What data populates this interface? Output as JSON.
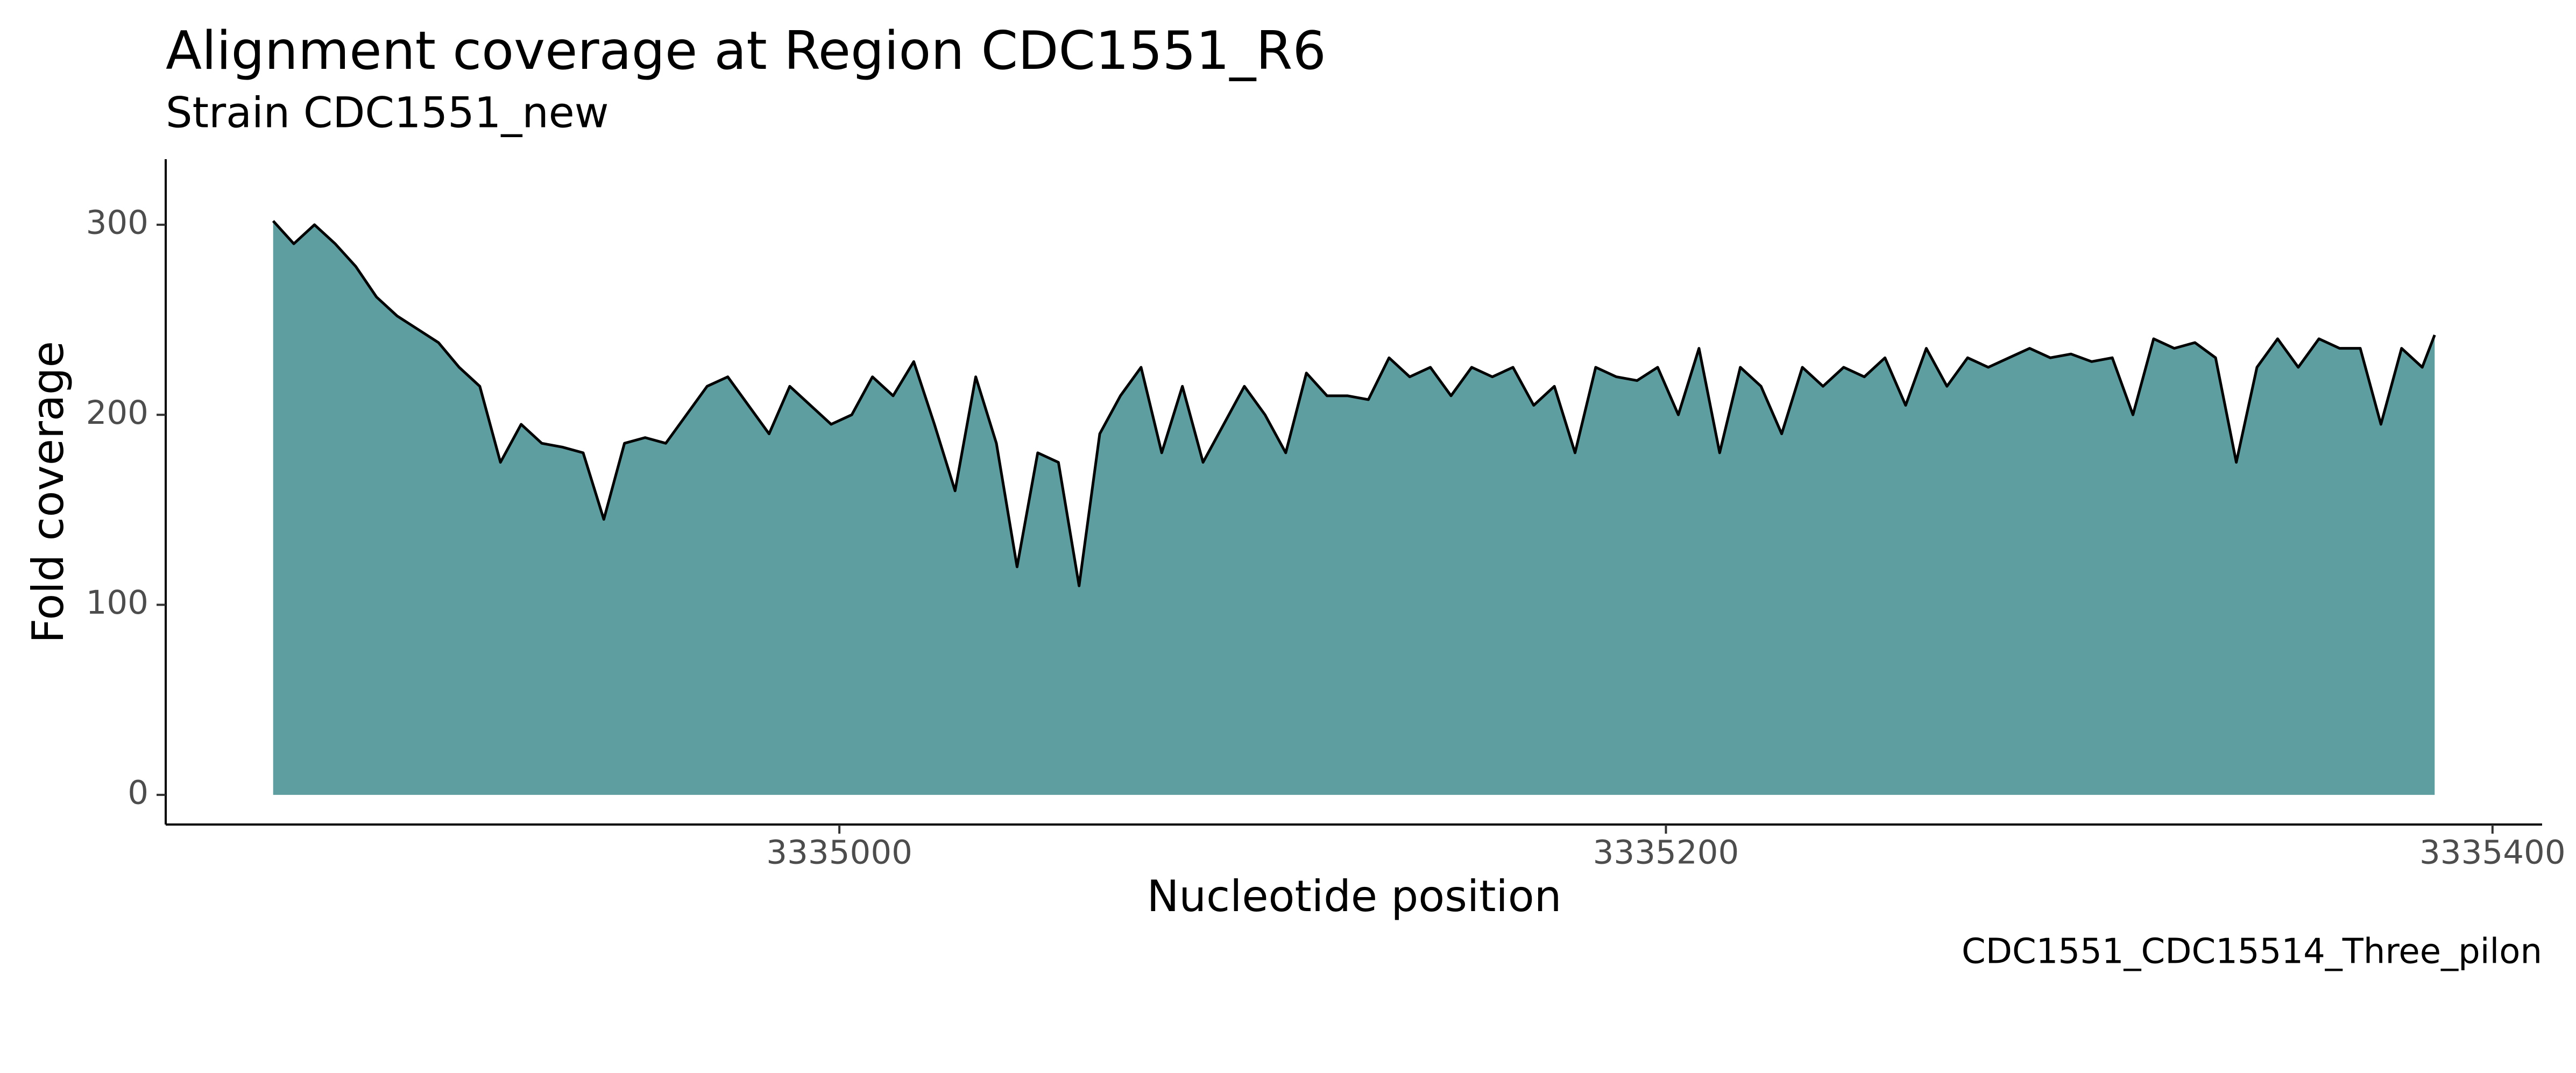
{
  "chart_data": {
    "type": "area",
    "title": "Alignment coverage at Region CDC1551_R6",
    "subtitle": "Strain CDC1551_new",
    "x_label": "Nucleotide position",
    "y_label": "Fold coverage",
    "caption": "CDC1551_CDC15514_Three_pilon",
    "fill_color": "#5f9ea0",
    "line_color": "#000000",
    "x": [
      3334863,
      3334868,
      3334873,
      3334878,
      3334883,
      3334888,
      3334893,
      3334898,
      3334903,
      3334908,
      3334913,
      3334918,
      3334923,
      3334928,
      3334933,
      3334938,
      3334943,
      3334948,
      3334953,
      3334958,
      3334963,
      3334968,
      3334973,
      3334978,
      3334983,
      3334988,
      3334993,
      3334998,
      3335003,
      3335008,
      3335013,
      3335018,
      3335023,
      3335028,
      3335033,
      3335038,
      3335043,
      3335048,
      3335053,
      3335058,
      3335063,
      3335068,
      3335073,
      3335078,
      3335083,
      3335088,
      3335093,
      3335098,
      3335103,
      3335108,
      3335113,
      3335118,
      3335123,
      3335128,
      3335133,
      3335138,
      3335143,
      3335148,
      3335153,
      3335158,
      3335163,
      3335168,
      3335173,
      3335178,
      3335183,
      3335188,
      3335193,
      3335198,
      3335203,
      3335208,
      3335213,
      3335218,
      3335223,
      3335228,
      3335233,
      3335238,
      3335243,
      3335248,
      3335253,
      3335258,
      3335263,
      3335268,
      3335273,
      3335278,
      3335283,
      3335288,
      3335293,
      3335298,
      3335303,
      3335308,
      3335313,
      3335318,
      3335323,
      3335328,
      3335333,
      3335338,
      3335343,
      3335348,
      3335353,
      3335358,
      3335363,
      3335368,
      3335373,
      3335378,
      3335383,
      3335386
    ],
    "values": [
      302,
      290,
      300,
      290,
      278,
      262,
      252,
      245,
      238,
      225,
      215,
      175,
      195,
      185,
      183,
      180,
      145,
      185,
      188,
      185,
      200,
      215,
      220,
      205,
      190,
      215,
      205,
      195,
      200,
      220,
      210,
      228,
      195,
      160,
      220,
      185,
      120,
      180,
      175,
      110,
      190,
      210,
      225,
      180,
      215,
      175,
      195,
      215,
      200,
      180,
      222,
      210,
      210,
      208,
      230,
      220,
      225,
      210,
      225,
      220,
      225,
      205,
      215,
      180,
      225,
      220,
      218,
      225,
      200,
      235,
      180,
      225,
      215,
      190,
      225,
      215,
      225,
      220,
      230,
      205,
      235,
      215,
      230,
      225,
      230,
      235,
      230,
      232,
      228,
      230,
      200,
      240,
      235,
      238,
      230,
      175,
      225,
      240,
      225,
      240,
      235,
      235,
      195,
      235,
      225,
      242
    ],
    "xlim": [
      3334837,
      3335412
    ],
    "ylim": [
      -15.6,
      334.5
    ],
    "xticks": [
      3335000,
      3335200,
      3335400
    ],
    "yticks": [
      0,
      100,
      200,
      300
    ]
  }
}
